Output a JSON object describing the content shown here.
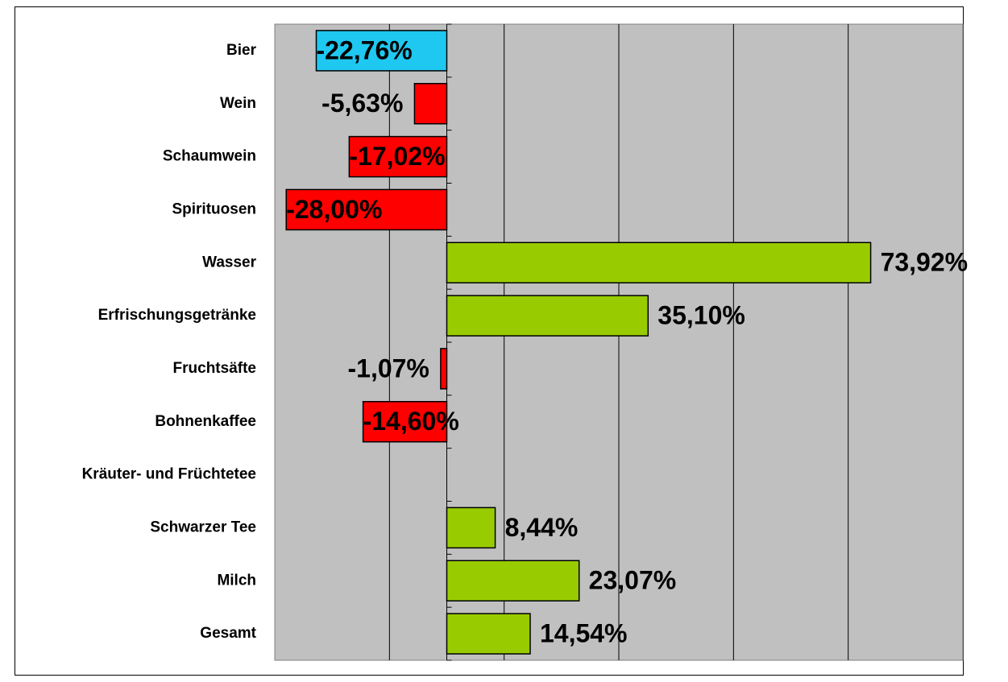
{
  "chart_data": {
    "type": "bar",
    "orientation": "horizontal",
    "categories": [
      "Bier",
      "Wein",
      "Schaumwein",
      "Spirituosen",
      "Wasser",
      "Erfrischungsgetränke",
      "Fruchtsäfte",
      "Bohnenkaffee",
      "Kräuter- und Früchtetee",
      "Schwarzer Tee",
      "Milch",
      "Gesamt"
    ],
    "values": [
      -22.76,
      -5.63,
      -17.02,
      -28.0,
      73.92,
      35.1,
      -1.07,
      -14.6,
      null,
      8.44,
      23.07,
      14.54
    ],
    "value_labels": [
      "-22,76%",
      "-5,63%",
      "-17,02%",
      "-28,00%",
      "73,92%",
      "35,10%",
      "-1,07%",
      "-14,60%",
      null,
      "8,44%",
      "23,07%",
      "14,54%"
    ],
    "colors": [
      "#1ec8f0",
      "#ff0000",
      "#ff0000",
      "#ff0000",
      "#99cc00",
      "#99cc00",
      "#ff0000",
      "#ff0000",
      null,
      "#99cc00",
      "#99cc00",
      "#99cc00"
    ],
    "xlim": [
      -30,
      90
    ],
    "xticks": [
      -30,
      -10,
      10,
      30,
      50,
      70,
      90
    ],
    "grid": true
  }
}
